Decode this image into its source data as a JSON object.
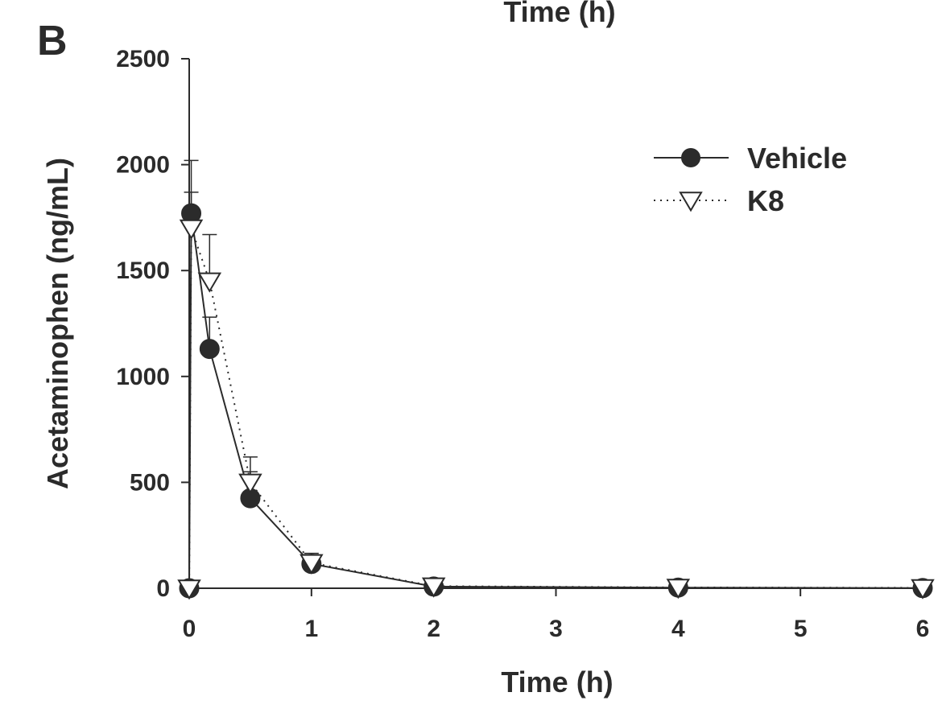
{
  "panel_label": "B",
  "top_cropped_label": "Time (h)",
  "chart_data": {
    "type": "line",
    "xlabel": "Time (h)",
    "ylabel": "Acetaminophen (ng/mL)",
    "xlim": [
      0,
      6
    ],
    "ylim": [
      0,
      2500
    ],
    "xticks": [
      0,
      1,
      2,
      3,
      4,
      5,
      6
    ],
    "yticks": [
      0,
      500,
      1000,
      1500,
      2000,
      2500
    ],
    "grid": false,
    "legend_position": "top-right",
    "series": [
      {
        "name": "Vehicle",
        "marker": "filled-circle",
        "line": "solid",
        "color": "#2b2b2b",
        "x": [
          0,
          0.0167,
          0.1667,
          0.5,
          1,
          2,
          4,
          6
        ],
        "y": [
          0,
          1770,
          1130,
          425,
          115,
          8,
          3,
          1
        ],
        "error_upper": [
          0,
          250,
          150,
          125,
          30,
          3,
          1,
          0
        ]
      },
      {
        "name": "K8",
        "marker": "open-triangle-down",
        "line": "dotted",
        "color": "#2b2b2b",
        "x": [
          0,
          0.0167,
          0.1667,
          0.5,
          1,
          2,
          4,
          6
        ],
        "y": [
          0,
          1700,
          1450,
          500,
          120,
          10,
          4,
          2
        ],
        "error_upper": [
          0,
          170,
          220,
          120,
          45,
          4,
          1,
          0
        ]
      }
    ]
  }
}
